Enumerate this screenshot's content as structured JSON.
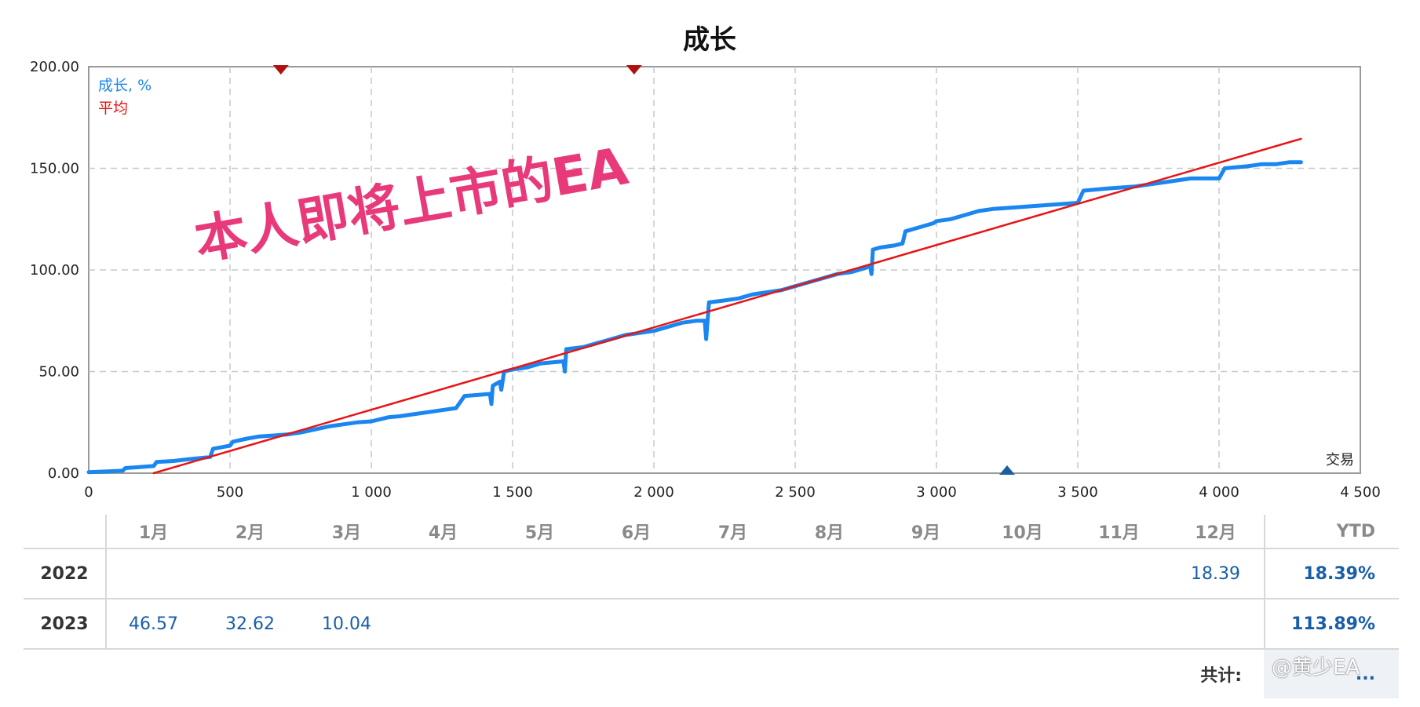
{
  "chart_data": {
    "type": "line",
    "title": "成长",
    "xlabel": "交易",
    "xlim": [
      0,
      4500
    ],
    "ylim": [
      0,
      200
    ],
    "x_ticks": [
      0,
      500,
      1000,
      1500,
      2000,
      2500,
      3000,
      3500,
      4000,
      4500
    ],
    "x_tick_labels": [
      "0",
      "500",
      "1 000",
      "1 500",
      "2 000",
      "2 500",
      "3 000",
      "3 500",
      "4 000",
      "4 500"
    ],
    "y_ticks": [
      0,
      50,
      100,
      150,
      200
    ],
    "y_tick_labels": [
      "0.00",
      "50.00",
      "100.00",
      "150.00",
      "200.00"
    ],
    "grid": true,
    "legend_placement": "top-left",
    "series": [
      {
        "name": "成长, %",
        "color": "#1a86f0",
        "points": [
          [
            0,
            0.5
          ],
          [
            60,
            0.8
          ],
          [
            120,
            1.2
          ],
          [
            130,
            2.5
          ],
          [
            180,
            3
          ],
          [
            230,
            3.5
          ],
          [
            240,
            5.5
          ],
          [
            300,
            6
          ],
          [
            350,
            6.8
          ],
          [
            400,
            7.5
          ],
          [
            430,
            8
          ],
          [
            440,
            12
          ],
          [
            480,
            13
          ],
          [
            500,
            13.5
          ],
          [
            510,
            15.5
          ],
          [
            560,
            17
          ],
          [
            600,
            18
          ],
          [
            650,
            18.5
          ],
          [
            700,
            19
          ],
          [
            750,
            20
          ],
          [
            800,
            21.5
          ],
          [
            850,
            23
          ],
          [
            900,
            24
          ],
          [
            950,
            25
          ],
          [
            1000,
            25.5
          ],
          [
            1030,
            26.5
          ],
          [
            1060,
            27.5
          ],
          [
            1100,
            28
          ],
          [
            1150,
            29
          ],
          [
            1200,
            30
          ],
          [
            1250,
            31
          ],
          [
            1300,
            32
          ],
          [
            1330,
            38
          ],
          [
            1380,
            38.5
          ],
          [
            1420,
            39
          ],
          [
            1425,
            34
          ],
          [
            1430,
            43
          ],
          [
            1455,
            45
          ],
          [
            1460,
            41
          ],
          [
            1470,
            50
          ],
          [
            1500,
            51
          ],
          [
            1550,
            52
          ],
          [
            1600,
            54
          ],
          [
            1680,
            55
          ],
          [
            1685,
            50
          ],
          [
            1690,
            61
          ],
          [
            1750,
            62
          ],
          [
            1800,
            64
          ],
          [
            1850,
            66
          ],
          [
            1900,
            68
          ],
          [
            1950,
            69
          ],
          [
            2000,
            70
          ],
          [
            2050,
            72
          ],
          [
            2100,
            74
          ],
          [
            2150,
            75
          ],
          [
            2180,
            75
          ],
          [
            2185,
            66
          ],
          [
            2195,
            84
          ],
          [
            2250,
            85
          ],
          [
            2300,
            86
          ],
          [
            2350,
            88
          ],
          [
            2400,
            89
          ],
          [
            2450,
            90
          ],
          [
            2500,
            92
          ],
          [
            2550,
            94
          ],
          [
            2600,
            96
          ],
          [
            2650,
            98
          ],
          [
            2700,
            99
          ],
          [
            2750,
            101
          ],
          [
            2765,
            102
          ],
          [
            2770,
            98
          ],
          [
            2775,
            110
          ],
          [
            2800,
            111
          ],
          [
            2850,
            112
          ],
          [
            2880,
            113
          ],
          [
            2890,
            119
          ],
          [
            2940,
            121
          ],
          [
            2990,
            123
          ],
          [
            3000,
            124
          ],
          [
            3050,
            125
          ],
          [
            3100,
            127
          ],
          [
            3150,
            129
          ],
          [
            3200,
            130
          ],
          [
            3300,
            131
          ],
          [
            3400,
            132
          ],
          [
            3500,
            133
          ],
          [
            3520,
            139
          ],
          [
            3600,
            140
          ],
          [
            3700,
            141
          ],
          [
            3800,
            143
          ],
          [
            3850,
            144
          ],
          [
            3900,
            145
          ],
          [
            4000,
            145
          ],
          [
            4020,
            150
          ],
          [
            4100,
            151
          ],
          [
            4150,
            152
          ],
          [
            4200,
            152
          ],
          [
            4250,
            153
          ],
          [
            4290,
            153
          ]
        ]
      },
      {
        "name": "平均",
        "color": "#e81414",
        "points": [
          [
            230,
            0
          ],
          [
            4290,
            164.5
          ]
        ]
      }
    ],
    "markers": [
      {
        "x": 680,
        "y": 200,
        "shape": "triangle-down",
        "color": "#b01010"
      },
      {
        "x": 1930,
        "y": 200,
        "shape": "triangle-down",
        "color": "#b01010"
      },
      {
        "x": 3250,
        "y": 0,
        "shape": "triangle-up",
        "color": "#1d5f9e"
      }
    ]
  },
  "watermark": "本人即将上市的EA",
  "table": {
    "months": [
      "1月",
      "2月",
      "3月",
      "4月",
      "5月",
      "6月",
      "7月",
      "8月",
      "9月",
      "10月",
      "11月",
      "12月"
    ],
    "ytd_label": "YTD",
    "rows": [
      {
        "year": "2022",
        "values": [
          "",
          "",
          "",
          "",
          "",
          "",
          "",
          "",
          "",
          "",
          "",
          "18.39"
        ],
        "ytd": "18.39%"
      },
      {
        "year": "2023",
        "values": [
          "46.57",
          "32.62",
          "10.04",
          "",
          "",
          "",
          "",
          "",
          "",
          "",
          "",
          ""
        ],
        "ytd": "113.89%"
      }
    ],
    "total_label": "共计:",
    "total_value": "..."
  },
  "credit": "@黄少EA"
}
